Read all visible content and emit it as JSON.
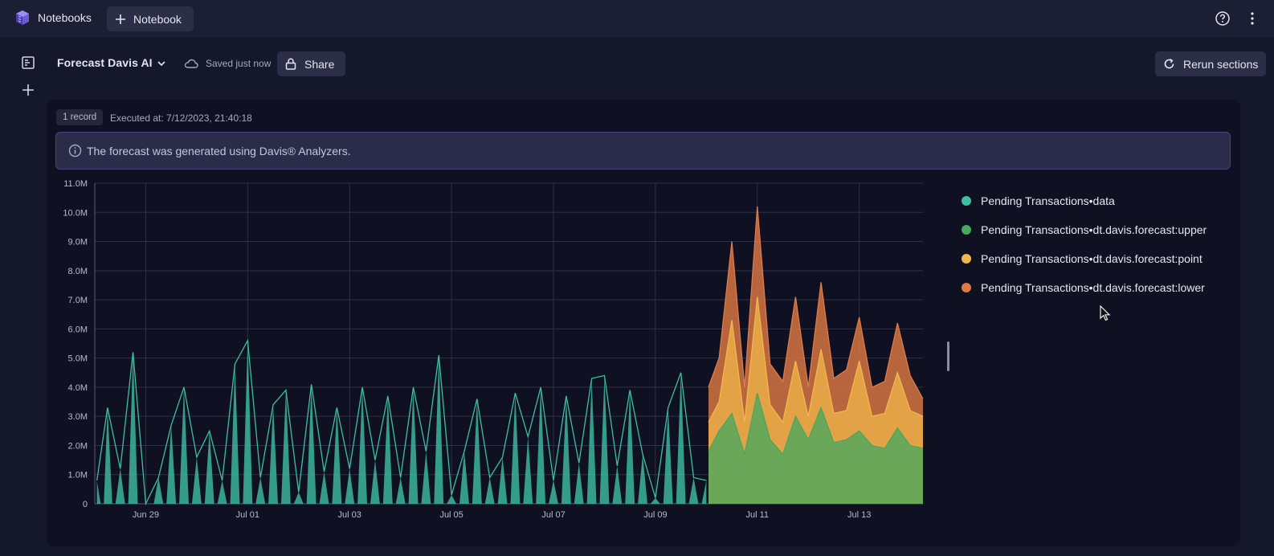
{
  "app": {
    "name": "Notebooks",
    "new_label": "Notebook"
  },
  "notebook": {
    "title": "Forecast Davis AI",
    "save_status": "Saved just now",
    "share_label": "Share",
    "rerun_label": "Rerun sections"
  },
  "result": {
    "record_count": "1 record",
    "executed_at": "Executed at: 7/12/2023, 21:40:18",
    "info_message": "The forecast was generated using Davis® Analyzers."
  },
  "colors": {
    "data": "#3dbfa2",
    "upper": "#48a85e",
    "point": "#f2b74a",
    "lower": "#e07a45"
  },
  "chart_data": {
    "type": "area",
    "title": "",
    "xlabel": "",
    "ylabel": "",
    "ylim": [
      0,
      11000000
    ],
    "y_ticks": [
      "0",
      "1.0M",
      "2.0M",
      "3.0M",
      "4.0M",
      "5.0M",
      "6.0M",
      "7.0M",
      "8.0M",
      "9.0M",
      "10.0M",
      "11.0M"
    ],
    "x_ticks": [
      "Jun 29",
      "Jul 01",
      "Jul 03",
      "Jul 05",
      "Jul 07",
      "Jul 09",
      "Jul 11",
      "Jul 13"
    ],
    "x_range": [
      "2023-06-28T00:00",
      "2023-07-14T06:00"
    ],
    "forecast_start": "2023-07-10T01:00",
    "grid": true,
    "legend": "right",
    "series": [
      {
        "name": "Pending Transactions•data",
        "color": "#3dbfa2",
        "x": [
          "2023-06-28T01:00",
          "2023-06-28T06:00",
          "2023-06-28T12:00",
          "2023-06-28T18:00",
          "2023-06-29T00:00",
          "2023-06-29T06:00",
          "2023-06-29T12:00",
          "2023-06-29T18:00",
          "2023-06-30T00:00",
          "2023-06-30T06:00",
          "2023-06-30T12:00",
          "2023-06-30T18:00",
          "2023-07-01T00:00",
          "2023-07-01T06:00",
          "2023-07-01T12:00",
          "2023-07-01T18:00",
          "2023-07-02T00:00",
          "2023-07-02T06:00",
          "2023-07-02T12:00",
          "2023-07-02T18:00",
          "2023-07-03T00:00",
          "2023-07-03T06:00",
          "2023-07-03T12:00",
          "2023-07-03T18:00",
          "2023-07-04T00:00",
          "2023-07-04T06:00",
          "2023-07-04T12:00",
          "2023-07-04T18:00",
          "2023-07-05T00:00",
          "2023-07-05T06:00",
          "2023-07-05T12:00",
          "2023-07-05T18:00",
          "2023-07-06T00:00",
          "2023-07-06T06:00",
          "2023-07-06T12:00",
          "2023-07-06T18:00",
          "2023-07-07T00:00",
          "2023-07-07T06:00",
          "2023-07-07T12:00",
          "2023-07-07T18:00",
          "2023-07-08T00:00",
          "2023-07-08T06:00",
          "2023-07-08T12:00",
          "2023-07-08T18:00",
          "2023-07-09T00:00",
          "2023-07-09T06:00",
          "2023-07-09T12:00",
          "2023-07-09T18:00",
          "2023-07-10T00:00"
        ],
        "values": [
          800000,
          3300000,
          1200000,
          5200000,
          0,
          900000,
          2700000,
          4000000,
          1600000,
          2500000,
          800000,
          4800000,
          5600000,
          900000,
          3400000,
          3900000,
          400000,
          4100000,
          1100000,
          3300000,
          1200000,
          4000000,
          1500000,
          3700000,
          900000,
          4000000,
          1800000,
          5100000,
          300000,
          1800000,
          3600000,
          900000,
          1600000,
          3800000,
          2300000,
          4000000,
          800000,
          3700000,
          1400000,
          4300000,
          4400000,
          1300000,
          3900000,
          1700000,
          200000,
          3300000,
          4500000,
          900000,
          800000
        ]
      },
      {
        "name": "Pending Transactions•dt.davis.forecast:upper",
        "color": "#48a85e",
        "x": [
          "2023-07-10T01:00",
          "2023-07-10T06:00",
          "2023-07-10T12:00",
          "2023-07-10T18:00",
          "2023-07-11T00:00",
          "2023-07-11T06:00",
          "2023-07-11T12:00",
          "2023-07-11T18:00",
          "2023-07-12T00:00",
          "2023-07-12T06:00",
          "2023-07-12T12:00",
          "2023-07-12T18:00",
          "2023-07-13T00:00",
          "2023-07-13T06:00",
          "2023-07-13T12:00",
          "2023-07-13T18:00",
          "2023-07-14T00:00",
          "2023-07-14T06:00"
        ],
        "values": [
          1800000,
          2500000,
          3100000,
          1700000,
          3800000,
          2200000,
          1700000,
          3000000,
          2200000,
          3300000,
          2100000,
          2200000,
          2500000,
          2000000,
          1900000,
          2600000,
          2000000,
          1900000
        ]
      },
      {
        "name": "Pending Transactions•dt.davis.forecast:point",
        "color": "#f2b74a",
        "x": [
          "2023-07-10T01:00",
          "2023-07-10T06:00",
          "2023-07-10T12:00",
          "2023-07-10T18:00",
          "2023-07-11T00:00",
          "2023-07-11T06:00",
          "2023-07-11T12:00",
          "2023-07-11T18:00",
          "2023-07-12T00:00",
          "2023-07-12T06:00",
          "2023-07-12T12:00",
          "2023-07-12T18:00",
          "2023-07-13T00:00",
          "2023-07-13T06:00",
          "2023-07-13T12:00",
          "2023-07-13T18:00",
          "2023-07-14T00:00",
          "2023-07-14T06:00"
        ],
        "values": [
          2800000,
          3500000,
          6300000,
          2800000,
          7100000,
          3400000,
          2800000,
          4900000,
          3000000,
          5300000,
          3100000,
          3200000,
          4900000,
          3000000,
          3100000,
          4500000,
          3200000,
          3000000
        ]
      },
      {
        "name": "Pending Transactions•dt.davis.forecast:lower",
        "color": "#e07a45",
        "x": [
          "2023-07-10T01:00",
          "2023-07-10T06:00",
          "2023-07-10T12:00",
          "2023-07-10T18:00",
          "2023-07-11T00:00",
          "2023-07-11T06:00",
          "2023-07-11T12:00",
          "2023-07-11T18:00",
          "2023-07-12T00:00",
          "2023-07-12T06:00",
          "2023-07-12T12:00",
          "2023-07-12T18:00",
          "2023-07-13T00:00",
          "2023-07-13T06:00",
          "2023-07-13T12:00",
          "2023-07-13T18:00",
          "2023-07-14T00:00",
          "2023-07-14T06:00"
        ],
        "values": [
          4000000,
          5000000,
          9000000,
          4000000,
          10200000,
          4800000,
          4200000,
          7100000,
          4000000,
          7600000,
          4300000,
          4600000,
          6400000,
          4000000,
          4200000,
          6200000,
          4400000,
          3600000
        ]
      }
    ]
  }
}
